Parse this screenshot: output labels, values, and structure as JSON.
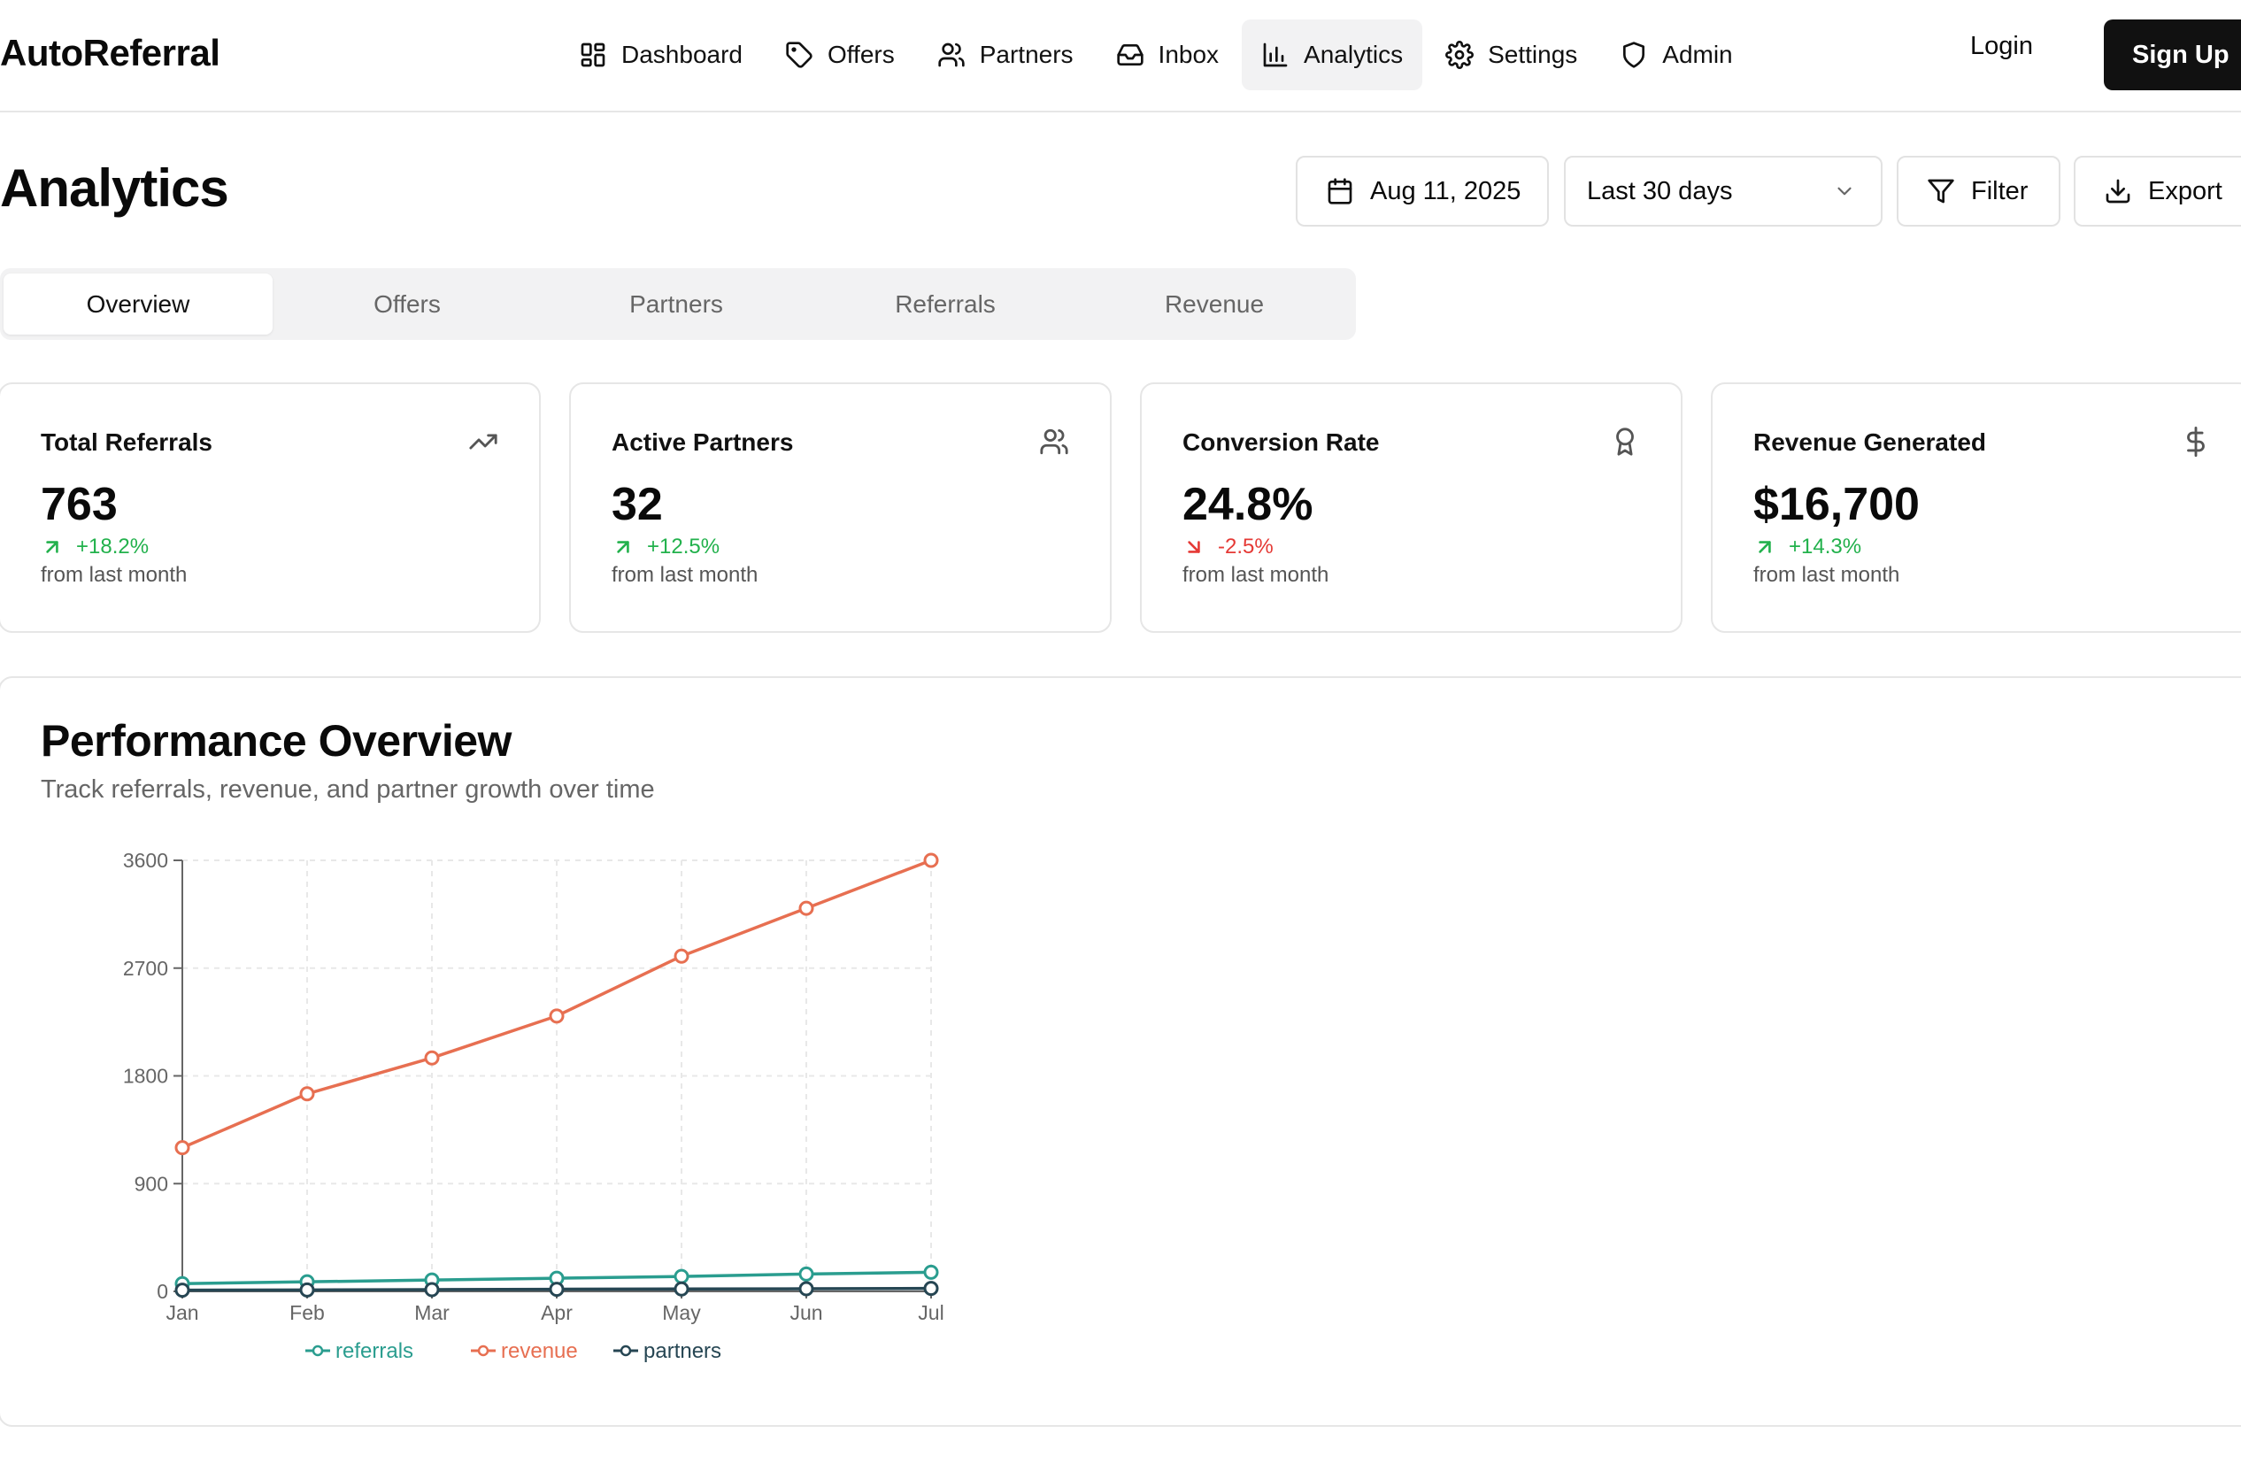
{
  "brand": "AutoReferral",
  "nav": {
    "items": [
      {
        "label": "Dashboard",
        "icon": "dashboard-icon"
      },
      {
        "label": "Offers",
        "icon": "tag-icon"
      },
      {
        "label": "Partners",
        "icon": "users-icon"
      },
      {
        "label": "Inbox",
        "icon": "inbox-icon"
      },
      {
        "label": "Analytics",
        "icon": "bar-chart-icon",
        "active": true
      },
      {
        "label": "Settings",
        "icon": "gear-icon"
      },
      {
        "label": "Admin",
        "icon": "shield-icon"
      }
    ],
    "login": "Login",
    "signup": "Sign Up"
  },
  "page": {
    "title": "Analytics",
    "date": "Aug 11, 2025",
    "range": "Last 30 days",
    "filter": "Filter",
    "export": "Export"
  },
  "tabs": [
    "Overview",
    "Offers",
    "Partners",
    "Referrals",
    "Revenue"
  ],
  "stats": [
    {
      "title": "Total Referrals",
      "value": "763",
      "change": "+18.2%",
      "direction": "up",
      "foot": "from last month",
      "icon": "trending-up-icon"
    },
    {
      "title": "Active Partners",
      "value": "32",
      "change": "+12.5%",
      "direction": "up",
      "foot": "from last month",
      "icon": "users-icon"
    },
    {
      "title": "Conversion Rate",
      "value": "24.8%",
      "change": "-2.5%",
      "direction": "down",
      "foot": "from last month",
      "icon": "award-icon"
    },
    {
      "title": "Revenue Generated",
      "value": "$16,700",
      "change": "+14.3%",
      "direction": "up",
      "foot": "from last month",
      "icon": "dollar-icon"
    }
  ],
  "performance": {
    "title": "Performance Overview",
    "subtitle": "Track referrals, revenue, and partner growth over time"
  },
  "colors": {
    "referrals": "#2a9d8f",
    "revenue": "#e76f51",
    "partners": "#264653",
    "up": "#22b14c",
    "down": "#e53935"
  },
  "chart_data": {
    "type": "line",
    "x": [
      "Jan",
      "Feb",
      "Mar",
      "Apr",
      "May",
      "Jun",
      "Jul"
    ],
    "ylim": [
      0,
      3600
    ],
    "yticks": [
      "0",
      "900",
      "1800",
      "2700",
      "3600"
    ],
    "grid": true,
    "legend": "bottom",
    "series": [
      {
        "name": "referrals",
        "values": [
          65,
          80,
          95,
          110,
          125,
          145,
          160
        ]
      },
      {
        "name": "revenue",
        "values": [
          1200,
          1650,
          1950,
          2300,
          2800,
          3200,
          3600
        ]
      },
      {
        "name": "partners",
        "values": [
          10,
          12,
          15,
          18,
          20,
          22,
          25
        ]
      }
    ]
  }
}
